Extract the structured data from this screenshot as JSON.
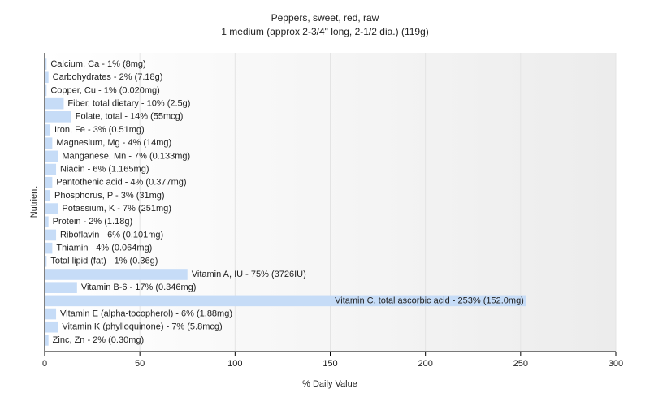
{
  "chart_data": {
    "type": "bar",
    "orientation": "horizontal",
    "title": "Peppers, sweet, red, raw",
    "subtitle": "1 medium (approx 2-3/4\" long, 2-1/2 dia.) (119g)",
    "x_label": "% Daily Value",
    "y_label": "Nutrient",
    "values": [
      1,
      2,
      1,
      10,
      14,
      3,
      4,
      7,
      6,
      4,
      3,
      7,
      2,
      6,
      4,
      1,
      75,
      17,
      253,
      6,
      7,
      2
    ],
    "value_labels": [
      "Calcium, Ca - 1% (8mg)",
      "Carbohydrates - 2% (7.18g)",
      "Copper, Cu - 1% (0.020mg)",
      "Fiber, total dietary - 10% (2.5g)",
      "Folate, total - 14% (55mcg)",
      "Iron, Fe - 3% (0.51mg)",
      "Magnesium, Mg - 4% (14mg)",
      "Manganese, Mn - 7% (0.133mg)",
      "Niacin - 6% (1.165mg)",
      "Pantothenic acid - 4% (0.377mg)",
      "Phosphorus, P - 3% (31mg)",
      "Potassium, K - 7% (251mg)",
      "Protein - 2% (1.18g)",
      "Riboflavin - 6% (0.101mg)",
      "Thiamin - 4% (0.064mg)",
      "Total lipid (fat) - 1% (0.36g)",
      "Vitamin A, IU - 75% (3726IU)",
      "Vitamin B-6 - 17% (0.346mg)",
      "Vitamin C, total ascorbic acid - 253% (152.0mg)",
      "Vitamin E (alpha-tocopherol) - 6% (1.88mg)",
      "Vitamin K (phylloquinone) - 7% (5.8mcg)",
      "Zinc, Zn - 2% (0.30mg)"
    ],
    "color": "#c6dcf7",
    "xlim": [
      0,
      300
    ],
    "xticks": [
      0,
      50,
      100,
      150,
      200,
      250,
      300
    ],
    "grid": true
  }
}
